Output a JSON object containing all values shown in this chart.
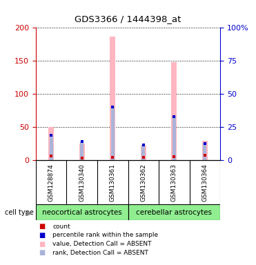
{
  "title": "GDS3366 / 1444398_at",
  "samples": [
    "GSM128874",
    "GSM130340",
    "GSM130361",
    "GSM130362",
    "GSM130363",
    "GSM130364"
  ],
  "groups": [
    {
      "name": "neocortical astrocytes",
      "indices": [
        0,
        1,
        2
      ],
      "color": "#90ee90"
    },
    {
      "name": "cerebellar astrocytes",
      "indices": [
        3,
        4,
        5
      ],
      "color": "#90ee90"
    }
  ],
  "value_absent": [
    50,
    25,
    187,
    22,
    148,
    30
  ],
  "rank_absent": [
    38,
    28,
    81,
    23,
    66,
    25
  ],
  "count_values": [
    7,
    3,
    5,
    4,
    6,
    8
  ],
  "percentile_rank": [
    38,
    28,
    81,
    23,
    66,
    25
  ],
  "left_ylim": [
    0,
    200
  ],
  "right_ylim": [
    0,
    100
  ],
  "left_yticks": [
    0,
    50,
    100,
    150,
    200
  ],
  "right_yticks": [
    0,
    25,
    50,
    75,
    100
  ],
  "right_yticklabels": [
    "0",
    "25",
    "50",
    "75",
    "100%"
  ],
  "left_color": "#cc0000",
  "right_color": "#0000cc",
  "pink_color": "#ffb6c1",
  "light_blue_color": "#aab4d8",
  "count_color": "#cc0000",
  "percentile_color": "#0000cc",
  "bg_color": "#ffffff",
  "bar_section_bg": "#c0c0c0",
  "legend_items": [
    {
      "label": "count",
      "color": "#cc0000"
    },
    {
      "label": "percentile rank within the sample",
      "color": "#0000cc"
    },
    {
      "label": "value, Detection Call = ABSENT",
      "color": "#ffb6c1"
    },
    {
      "label": "rank, Detection Call = ABSENT",
      "color": "#aab4d8"
    }
  ]
}
